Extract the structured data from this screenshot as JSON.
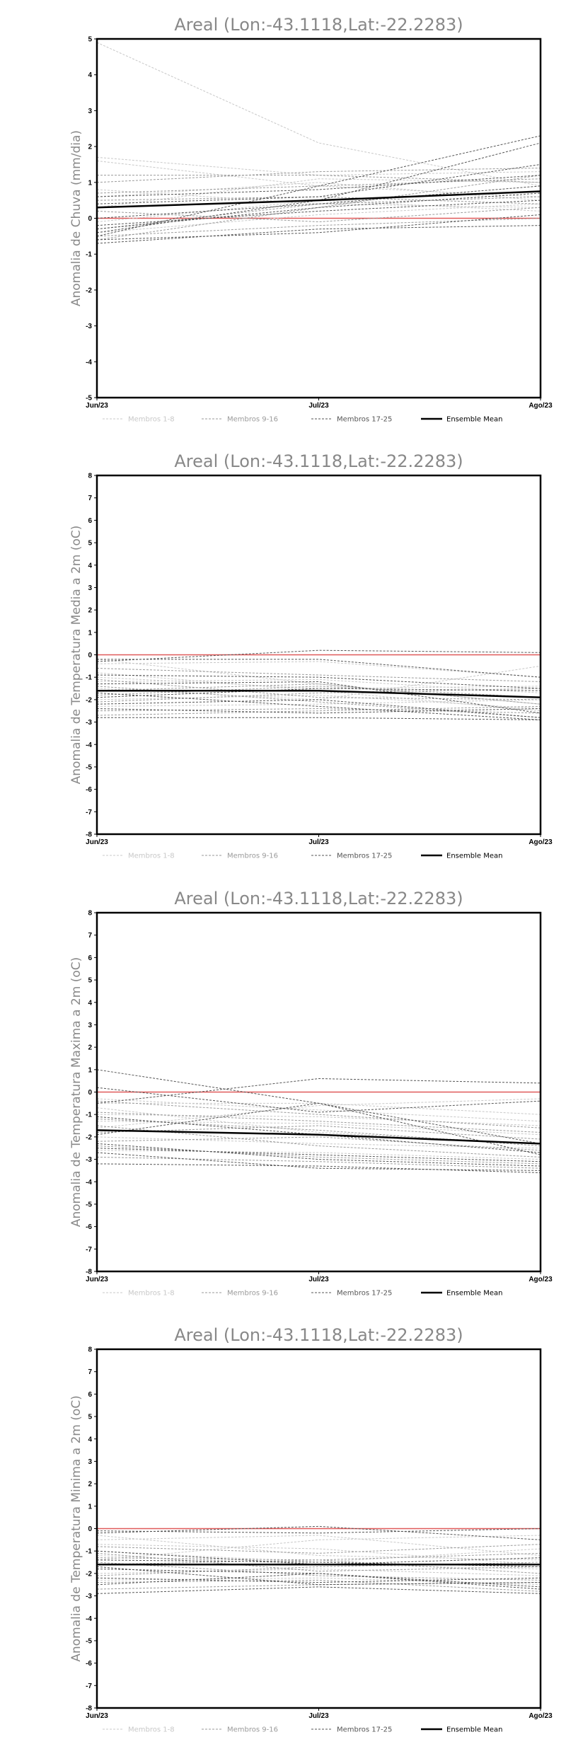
{
  "legend": {
    "entries": [
      {
        "label": "Membros 1-8",
        "color": "#c8c8c8",
        "dash": "3,2",
        "width": 1
      },
      {
        "label": "Membros 9-16",
        "color": "#9a9a9a",
        "dash": "3,2",
        "width": 1
      },
      {
        "label": "Membros 17-25",
        "color": "#555555",
        "dash": "3,2",
        "width": 1
      },
      {
        "label": "Ensemble Mean",
        "color": "#000000",
        "dash": "",
        "width": 2.5
      }
    ]
  },
  "chart_data": [
    {
      "type": "line",
      "title": "Areal (Lon:-43.1118,Lat:-22.2283)",
      "ylabel": "Anomalia de Chuva (mm/dia)",
      "categories": [
        "Jun/23",
        "Jul/23",
        "Ago/23"
      ],
      "ylim": [
        -5,
        5
      ],
      "yticks": [
        -5,
        -4,
        -3,
        -2,
        -1,
        0,
        1,
        2,
        3,
        4,
        5
      ],
      "zero_line_color": "#e05a5a",
      "series": [
        {
          "group": 1,
          "values": [
            4.9,
            2.1,
            0.9
          ]
        },
        {
          "group": 1,
          "values": [
            1.7,
            1.2,
            1.3
          ]
        },
        {
          "group": 1,
          "values": [
            1.6,
            0.9,
            0.6
          ]
        },
        {
          "group": 1,
          "values": [
            0.6,
            1.0,
            0.5
          ]
        },
        {
          "group": 1,
          "values": [
            -0.1,
            0.5,
            0.2
          ]
        },
        {
          "group": 1,
          "values": [
            0.8,
            0.4,
            0.3
          ]
        },
        {
          "group": 1,
          "values": [
            -0.4,
            0.1,
            0.4
          ]
        },
        {
          "group": 1,
          "values": [
            0.3,
            1.1,
            1.0
          ]
        },
        {
          "group": 2,
          "values": [
            1.0,
            1.3,
            1.4
          ]
        },
        {
          "group": 2,
          "values": [
            0.5,
            0.6,
            0.4
          ]
        },
        {
          "group": 2,
          "values": [
            -0.6,
            0.3,
            1.2
          ]
        },
        {
          "group": 2,
          "values": [
            0.2,
            -0.1,
            0.3
          ]
        },
        {
          "group": 2,
          "values": [
            -0.3,
            0.4,
            0.6
          ]
        },
        {
          "group": 2,
          "values": [
            0.7,
            0.9,
            1.1
          ]
        },
        {
          "group": 2,
          "values": [
            -0.5,
            -0.2,
            0.0
          ]
        },
        {
          "group": 2,
          "values": [
            1.2,
            1.2,
            1.0
          ]
        },
        {
          "group": 3,
          "values": [
            -0.5,
            0.9,
            2.3
          ]
        },
        {
          "group": 3,
          "values": [
            -0.4,
            0.5,
            2.1
          ]
        },
        {
          "group": 3,
          "values": [
            0.4,
            0.6,
            1.5
          ]
        },
        {
          "group": 3,
          "values": [
            -0.7,
            -0.3,
            -0.2
          ]
        },
        {
          "group": 3,
          "values": [
            0.6,
            0.8,
            1.2
          ]
        },
        {
          "group": 3,
          "values": [
            -0.2,
            0.2,
            0.5
          ]
        },
        {
          "group": 3,
          "values": [
            0.0,
            0.4,
            0.9
          ]
        },
        {
          "group": 3,
          "values": [
            -0.6,
            -0.4,
            0.1
          ]
        },
        {
          "group": 3,
          "values": [
            -0.3,
            0.3,
            0.7
          ]
        }
      ],
      "mean": [
        0.3,
        0.5,
        0.75
      ]
    },
    {
      "type": "line",
      "title": "Areal (Lon:-43.1118,Lat:-22.2283)",
      "ylabel": "Anomalia de Temperatura Media a 2m (oC)",
      "categories": [
        "Jun/23",
        "Jul/23",
        "Ago/23"
      ],
      "ylim": [
        -8,
        8
      ],
      "yticks": [
        -8,
        -7,
        -6,
        -5,
        -4,
        -3,
        -2,
        -1,
        0,
        1,
        2,
        3,
        4,
        5,
        6,
        7,
        8
      ],
      "zero_line_color": "#e05a5a",
      "series": [
        {
          "group": 1,
          "values": [
            -0.2,
            -1.3,
            -2.2
          ]
        },
        {
          "group": 1,
          "values": [
            -1.0,
            -1.5,
            -1.4
          ]
        },
        {
          "group": 1,
          "values": [
            -1.5,
            -2.0,
            -0.5
          ]
        },
        {
          "group": 1,
          "values": [
            -0.4,
            -0.3,
            -1.0
          ]
        },
        {
          "group": 1,
          "values": [
            -2.0,
            -1.8,
            -2.4
          ]
        },
        {
          "group": 1,
          "values": [
            -1.2,
            -1.1,
            -1.7
          ]
        },
        {
          "group": 1,
          "values": [
            -2.3,
            -2.2,
            -2.0
          ]
        },
        {
          "group": 1,
          "values": [
            -0.8,
            -1.6,
            -2.5
          ]
        },
        {
          "group": 2,
          "values": [
            -1.8,
            -1.4,
            -1.9
          ]
        },
        {
          "group": 2,
          "values": [
            -2.5,
            -2.4,
            -2.6
          ]
        },
        {
          "group": 2,
          "values": [
            -0.6,
            -0.9,
            -1.2
          ]
        },
        {
          "group": 2,
          "values": [
            -1.4,
            -2.1,
            -2.8
          ]
        },
        {
          "group": 2,
          "values": [
            -2.1,
            -1.7,
            -1.5
          ]
        },
        {
          "group": 2,
          "values": [
            -1.6,
            -1.3,
            -2.2
          ]
        },
        {
          "group": 2,
          "values": [
            -2.7,
            -2.5,
            -2.3
          ]
        },
        {
          "group": 2,
          "values": [
            -1.1,
            -1.9,
            -2.0
          ]
        },
        {
          "group": 3,
          "values": [
            -0.3,
            0.2,
            0.1
          ]
        },
        {
          "group": 3,
          "values": [
            -0.2,
            -0.2,
            -1.0
          ]
        },
        {
          "group": 3,
          "values": [
            -2.8,
            -2.8,
            -2.9
          ]
        },
        {
          "group": 3,
          "values": [
            -1.3,
            -1.2,
            -2.6
          ]
        },
        {
          "group": 3,
          "values": [
            -2.2,
            -2.0,
            -2.8
          ]
        },
        {
          "group": 3,
          "values": [
            -1.9,
            -1.5,
            -1.6
          ]
        },
        {
          "group": 3,
          "values": [
            -0.9,
            -1.0,
            -1.5
          ]
        },
        {
          "group": 3,
          "values": [
            -2.4,
            -2.6,
            -2.4
          ]
        },
        {
          "group": 3,
          "values": [
            -1.7,
            -2.3,
            -2.9
          ]
        }
      ],
      "mean": [
        -1.6,
        -1.6,
        -1.9
      ]
    },
    {
      "type": "line",
      "title": "Areal (Lon:-43.1118,Lat:-22.2283)",
      "ylabel": "Anomalia de Temperatura Maxima a 2m (oC)",
      "categories": [
        "Jun/23",
        "Jul/23",
        "Ago/23"
      ],
      "ylim": [
        -8,
        8
      ],
      "yticks": [
        -8,
        -7,
        -6,
        -5,
        -4,
        -3,
        -2,
        -1,
        0,
        1,
        2,
        3,
        4,
        5,
        6,
        7,
        8
      ],
      "zero_line_color": "#e05a5a",
      "series": [
        {
          "group": 1,
          "values": [
            -0.3,
            -0.8,
            -1.3
          ]
        },
        {
          "group": 1,
          "values": [
            -1.0,
            -1.1,
            -1.5
          ]
        },
        {
          "group": 1,
          "values": [
            -1.6,
            -0.6,
            -0.3
          ]
        },
        {
          "group": 1,
          "values": [
            -0.5,
            -0.5,
            -1.0
          ]
        },
        {
          "group": 1,
          "values": [
            -2.0,
            -2.3,
            -2.5
          ]
        },
        {
          "group": 1,
          "values": [
            -1.3,
            -1.4,
            -1.9
          ]
        },
        {
          "group": 1,
          "values": [
            -2.6,
            -2.7,
            -3.0
          ]
        },
        {
          "group": 1,
          "values": [
            -0.7,
            -1.8,
            -2.3
          ]
        },
        {
          "group": 2,
          "values": [
            -1.8,
            -1.5,
            -2.1
          ]
        },
        {
          "group": 2,
          "values": [
            -2.4,
            -2.9,
            -3.2
          ]
        },
        {
          "group": 2,
          "values": [
            -0.4,
            -1.0,
            -1.6
          ]
        },
        {
          "group": 2,
          "values": [
            -1.5,
            -2.4,
            -2.9
          ]
        },
        {
          "group": 2,
          "values": [
            -2.2,
            -2.0,
            -2.6
          ]
        },
        {
          "group": 2,
          "values": [
            -1.2,
            -1.7,
            -2.4
          ]
        },
        {
          "group": 2,
          "values": [
            -2.9,
            -3.1,
            -3.4
          ]
        },
        {
          "group": 2,
          "values": [
            -0.9,
            -1.3,
            -1.8
          ]
        },
        {
          "group": 3,
          "values": [
            1.0,
            -0.5,
            -2.3
          ]
        },
        {
          "group": 3,
          "values": [
            -0.5,
            0.6,
            0.4
          ]
        },
        {
          "group": 3,
          "values": [
            -3.2,
            -3.3,
            -3.6
          ]
        },
        {
          "group": 3,
          "values": [
            -2.7,
            -3.4,
            -3.5
          ]
        },
        {
          "group": 3,
          "values": [
            -1.9,
            -0.5,
            -2.8
          ]
        },
        {
          "group": 3,
          "values": [
            -2.5,
            -2.8,
            -3.1
          ]
        },
        {
          "group": 3,
          "values": [
            0.2,
            -0.9,
            -0.4
          ]
        },
        {
          "group": 3,
          "values": [
            -2.3,
            -3.0,
            -3.3
          ]
        },
        {
          "group": 3,
          "values": [
            -1.1,
            -1.9,
            -2.7
          ]
        }
      ],
      "mean": [
        -1.7,
        -1.9,
        -2.3
      ]
    },
    {
      "type": "line",
      "title": "Areal (Lon:-43.1118,Lat:-22.2283)",
      "ylabel": "Anomalia de Temperatura Minima a 2m (oC)",
      "categories": [
        "Jun/23",
        "Jul/23",
        "Ago/23"
      ],
      "ylim": [
        -8,
        8
      ],
      "yticks": [
        -8,
        -7,
        -6,
        -5,
        -4,
        -3,
        -2,
        -1,
        0,
        1,
        2,
        3,
        4,
        5,
        6,
        7,
        8
      ],
      "zero_line_color": "#e05a5a",
      "series": [
        {
          "group": 1,
          "values": [
            -0.5,
            -0.3,
            -1.2
          ]
        },
        {
          "group": 1,
          "values": [
            -1.0,
            -1.5,
            -0.9
          ]
        },
        {
          "group": 1,
          "values": [
            -1.4,
            -0.5,
            -0.3
          ]
        },
        {
          "group": 1,
          "values": [
            -0.7,
            -0.9,
            -1.6
          ]
        },
        {
          "group": 1,
          "values": [
            -2.0,
            -1.8,
            -2.1
          ]
        },
        {
          "group": 1,
          "values": [
            -1.2,
            -1.6,
            -1.8
          ]
        },
        {
          "group": 1,
          "values": [
            -2.3,
            -2.2,
            -2.5
          ]
        },
        {
          "group": 1,
          "values": [
            -0.3,
            -1.2,
            -1.4
          ]
        },
        {
          "group": 2,
          "values": [
            -1.6,
            -1.4,
            -1.1
          ]
        },
        {
          "group": 2,
          "values": [
            -2.4,
            -2.3,
            -2.8
          ]
        },
        {
          "group": 2,
          "values": [
            -0.8,
            -1.1,
            -0.7
          ]
        },
        {
          "group": 2,
          "values": [
            -1.5,
            -2.1,
            -2.3
          ]
        },
        {
          "group": 2,
          "values": [
            -2.1,
            -1.7,
            -1.5
          ]
        },
        {
          "group": 2,
          "values": [
            -1.3,
            -1.4,
            -2.0
          ]
        },
        {
          "group": 2,
          "values": [
            -2.7,
            -2.5,
            -2.4
          ]
        },
        {
          "group": 2,
          "values": [
            -1.1,
            -1.9,
            -1.7
          ]
        },
        {
          "group": 3,
          "values": [
            -0.2,
            0.1,
            -0.5
          ]
        },
        {
          "group": 3,
          "values": [
            -0.1,
            -0.2,
            0.0
          ]
        },
        {
          "group": 3,
          "values": [
            -2.9,
            -2.6,
            -2.9
          ]
        },
        {
          "group": 3,
          "values": [
            -1.8,
            -2.0,
            -2.6
          ]
        },
        {
          "group": 3,
          "values": [
            -2.2,
            -2.4,
            -2.2
          ]
        },
        {
          "group": 3,
          "values": [
            -1.4,
            -1.5,
            -1.7
          ]
        },
        {
          "group": 3,
          "values": [
            -1.0,
            -1.6,
            -1.3
          ]
        },
        {
          "group": 3,
          "values": [
            -2.5,
            -2.0,
            -2.7
          ]
        },
        {
          "group": 3,
          "values": [
            -1.7,
            -2.5,
            -2.4
          ]
        }
      ],
      "mean": [
        -1.6,
        -1.6,
        -1.6
      ]
    }
  ]
}
